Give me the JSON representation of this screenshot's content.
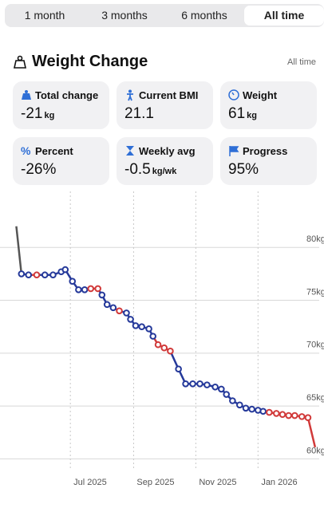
{
  "tabs": [
    "1 month",
    "3 months",
    "6 months",
    "All time"
  ],
  "header": {
    "title": "Weight Change",
    "range": "All time"
  },
  "stats": [
    {
      "label": "Total change",
      "value": "-21",
      "unit": "kg"
    },
    {
      "label": "Current BMI",
      "value": "21.1"
    },
    {
      "label": "Weight",
      "value": "61",
      "unit": "kg"
    },
    {
      "label": "Percent",
      "value": "-26%"
    },
    {
      "label": "Weekly avg",
      "value": "-0.5",
      "unit": "kg/wk"
    },
    {
      "label": "Progress",
      "value": "95%"
    }
  ],
  "chart_data": {
    "type": "line",
    "x": [
      -53,
      -48,
      -41,
      -33,
      -25,
      -17,
      -9,
      -5,
      2,
      8,
      14,
      20,
      27,
      31,
      36,
      42,
      48,
      55,
      59,
      64,
      70,
      77,
      81,
      86,
      92,
      98,
      106,
      113,
      120,
      127,
      134,
      142,
      148,
      153,
      159,
      166,
      172,
      178,
      184,
      189,
      195,
      202,
      208,
      214,
      220,
      227,
      233,
      240
    ],
    "values": [
      82.0,
      77.5,
      77.4,
      77.4,
      77.4,
      77.4,
      77.7,
      77.9,
      76.8,
      76.0,
      76.0,
      76.1,
      76.1,
      75.5,
      74.6,
      74.3,
      74.0,
      73.8,
      73.2,
      72.6,
      72.5,
      72.3,
      71.6,
      70.8,
      70.5,
      70.2,
      68.5,
      67.1,
      67.1,
      67.1,
      67.0,
      66.8,
      66.6,
      66.1,
      65.5,
      65.1,
      64.8,
      64.7,
      64.6,
      64.5,
      64.4,
      64.3,
      64.2,
      64.1,
      64.1,
      64.0,
      63.9,
      61.1
    ],
    "marker_colors": [
      null,
      "#25399a",
      "#25399a",
      "#d13a3a",
      "#25399a",
      "#25399a",
      "#25399a",
      "#25399a",
      "#25399a",
      "#25399a",
      "#25399a",
      "#d13a3a",
      "#d13a3a",
      "#25399a",
      "#25399a",
      "#25399a",
      "#d13a3a",
      "#25399a",
      "#25399a",
      "#25399a",
      "#25399a",
      "#25399a",
      "#25399a",
      "#d13a3a",
      "#d13a3a",
      "#d13a3a",
      "#25399a",
      "#25399a",
      "#25399a",
      "#25399a",
      "#25399a",
      "#25399a",
      "#25399a",
      "#25399a",
      "#25399a",
      "#25399a",
      "#25399a",
      "#25399a",
      "#25399a",
      "#25399a",
      "#d13a3a",
      "#d13a3a",
      "#d13a3a",
      "#d13a3a",
      "#d13a3a",
      "#d13a3a",
      "#d13a3a",
      "#d13a3a"
    ],
    "first_segment_color": "#555555",
    "xlim": [
      -69,
      244
    ],
    "ylim": [
      58.9,
      85.3
    ],
    "xticks": [
      {
        "value": 0,
        "label": "Jul 2025"
      },
      {
        "value": 62,
        "label": "Sep 2025"
      },
      {
        "value": 123,
        "label": "Nov 2025"
      },
      {
        "value": 184,
        "label": "Jan 2026"
      }
    ],
    "yticks": [
      {
        "value": 80,
        "label": "80kg"
      },
      {
        "value": 75,
        "label": "75kg"
      },
      {
        "value": 70,
        "label": "70kg"
      },
      {
        "value": 65,
        "label": "65kg"
      },
      {
        "value": 60,
        "label": "60kg"
      }
    ],
    "grid": true
  }
}
